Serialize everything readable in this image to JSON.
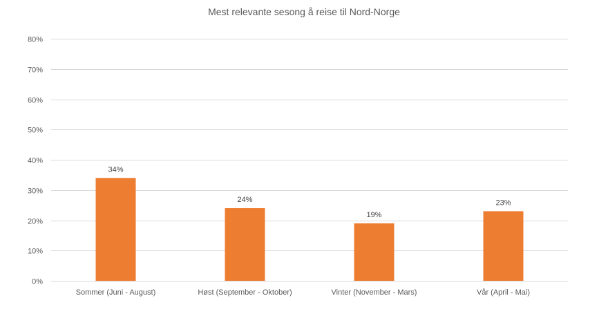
{
  "chart_data": {
    "type": "bar",
    "title": "Mest relevante sesong å reise til Nord-Norge",
    "categories": [
      "Sommer (Juni - August)",
      "Høst (September - Oktober)",
      "Vinter (November - Mars)",
      "Vår (April - Mai)"
    ],
    "values": [
      34,
      24,
      19,
      23
    ],
    "value_labels": [
      "34%",
      "24%",
      "19%",
      "23%"
    ],
    "xlabel": "",
    "ylabel": "",
    "ylim": [
      0,
      80
    ],
    "y_ticks": [
      0,
      10,
      20,
      30,
      40,
      50,
      60,
      70,
      80
    ],
    "y_tick_labels": [
      "0%",
      "10%",
      "20%",
      "30%",
      "40%",
      "50%",
      "60%",
      "70%",
      "80%"
    ],
    "grid": true,
    "legend": "none",
    "bar_color": "#ed7d31",
    "grid_color": "#d9d9d9"
  }
}
